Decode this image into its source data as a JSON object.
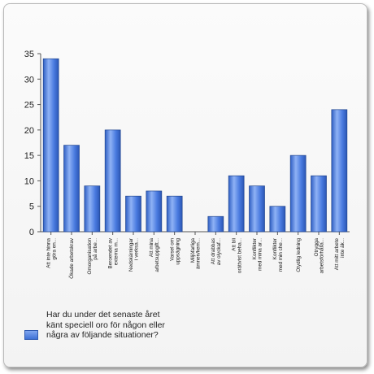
{
  "chart_data": {
    "type": "bar",
    "categories": [
      [
        "Att inte hinna",
        "göra en..."
      ],
      [
        "Ökade arbetskrav"
      ],
      [
        "Omorganisation",
        "på arbe..."
      ],
      [
        "Beroendet av",
        "externa m..."
      ],
      [
        "Nedskärningar",
        "i verksa..."
      ],
      [
        "Att mina",
        "arbetsuppgift..."
      ],
      [
        "Varsel om",
        "uppsägning"
      ],
      [
        "Miljöfarliga",
        "ämnen/kem..."
      ],
      [
        "Att drabbas",
        "av olyckaf..."
      ],
      [
        "Att bli",
        "orättvist beha..."
      ],
      [
        "Konflikter",
        "med mina ar..."
      ],
      [
        "Konflikter",
        "med min che..."
      ],
      [
        "Otydlig ledning"
      ],
      [
        "Otrygga",
        "arbetsförhålla..."
      ],
      [
        "Att mitt arbete",
        "inte äk..."
      ]
    ],
    "values": [
      34,
      17,
      9,
      20,
      7,
      8,
      7,
      0,
      3,
      11,
      9,
      5,
      15,
      11,
      24
    ],
    "ylim": [
      0,
      35
    ],
    "yticks": [
      0,
      5,
      10,
      15,
      20,
      25,
      30,
      35
    ],
    "grid": false,
    "legend": {
      "position": "bottom-left",
      "label": "Har du under det senaste året känt speciell oro för någon eller några av följande situationer?"
    },
    "bar_color": "#4a7be0"
  }
}
